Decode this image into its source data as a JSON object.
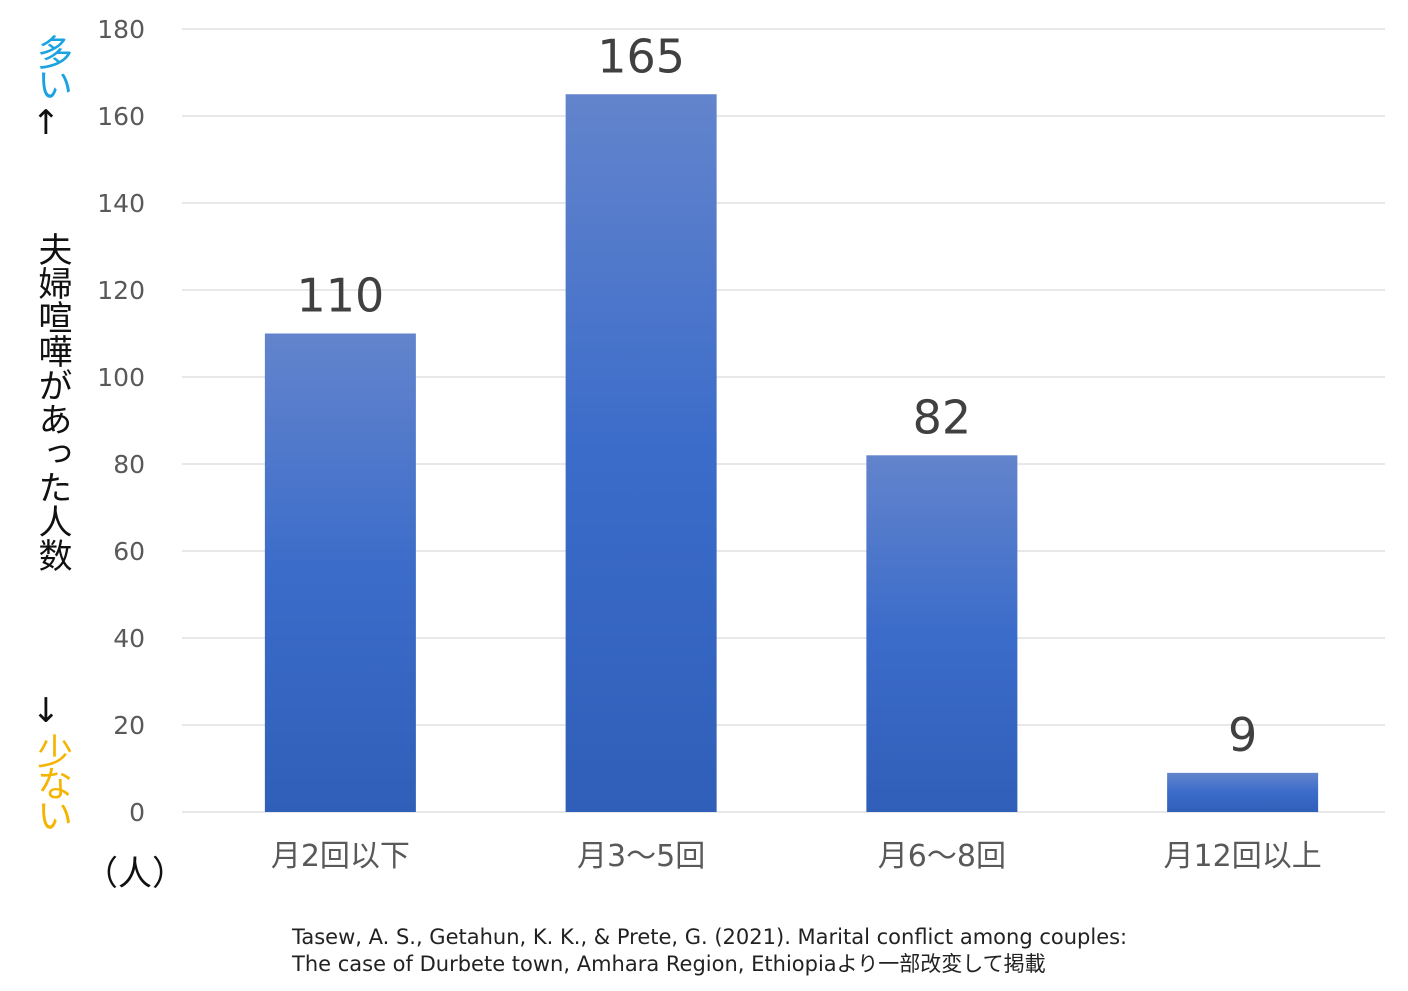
{
  "annotations": {
    "many": "多い",
    "arrow_up": "↑",
    "arrow_down": "↓",
    "few": "少ない",
    "many_color": "#1aa3e0",
    "few_color": "#f5b400"
  },
  "unit": "（人）",
  "source": {
    "line1": "Tasew, A. S., Getahun, K. K., & Prete, G. (2021). Marital conflict among couples:",
    "line2": "The case of Durbete town, Amhara Region, Ethiopiaより一部改変して掲載"
  },
  "chart_data": {
    "type": "bar",
    "categories": [
      "月2回以下",
      "月3～5回",
      "月6～8回",
      "月12回以上"
    ],
    "values": [
      110,
      165,
      82,
      9
    ],
    "data_labels": [
      "110",
      "165",
      "82",
      "9"
    ],
    "title": "",
    "xlabel": "",
    "ylabel": "夫婦喧嘩があった人数",
    "ylim": [
      0,
      180
    ],
    "yticks": [
      "0",
      "20",
      "40",
      "60",
      "80",
      "100",
      "120",
      "140",
      "160",
      "180"
    ],
    "grid": true,
    "legend": "none",
    "bar_color_top": "#6384cc",
    "bar_color_bottom": "#2f5fb8",
    "bar_color_mid": "#3b6cca"
  }
}
